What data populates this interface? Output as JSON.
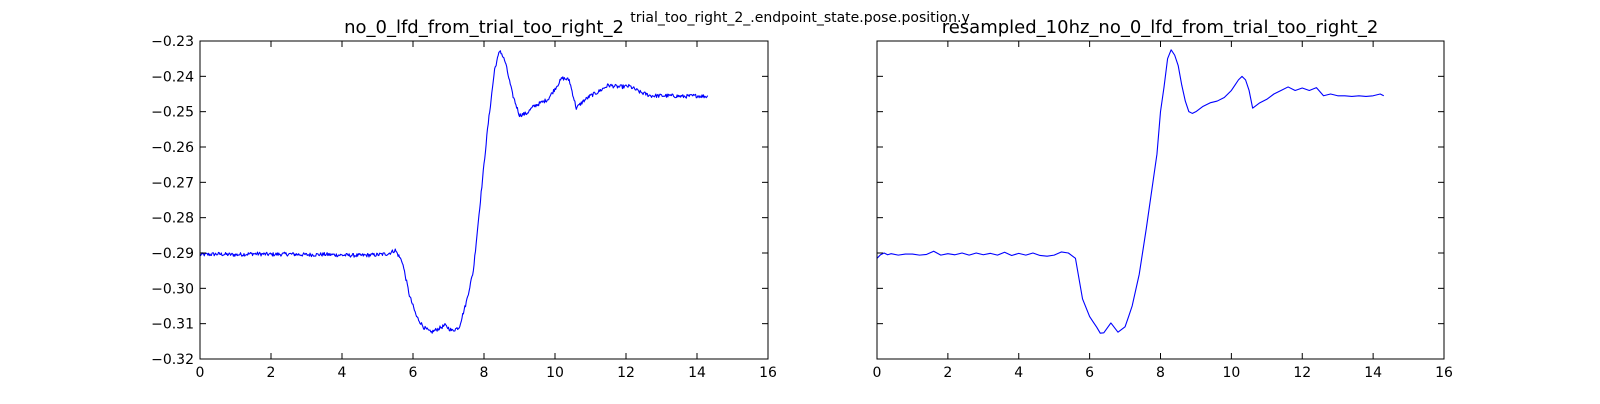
{
  "figure": {
    "suptitle": "trial_too_right_2_.endpoint_state.pose.position.y",
    "line_color": "#0000ff"
  },
  "chart_data": [
    {
      "type": "line",
      "title": "no_0_lfd_from_trial_too_right_2",
      "xlabel": "",
      "ylabel": "",
      "xlim": [
        0,
        16
      ],
      "ylim": [
        -0.32,
        -0.23
      ],
      "xticks": [
        0,
        2,
        4,
        6,
        8,
        10,
        12,
        14,
        16
      ],
      "xtick_labels": [
        "0",
        "2",
        "4",
        "6",
        "8",
        "10",
        "12",
        "14",
        "16"
      ],
      "yticks": [
        -0.32,
        -0.31,
        -0.3,
        -0.29,
        -0.28,
        -0.27,
        -0.26,
        -0.25,
        -0.24,
        -0.23
      ],
      "ytick_labels": [
        "−0.32",
        "−0.31",
        "−0.30",
        "−0.29",
        "−0.28",
        "−0.27",
        "−0.26",
        "−0.25",
        "−0.24",
        "−0.23"
      ],
      "grid": false,
      "legend": "none",
      "noisy": true,
      "series": [
        {
          "x": [
            0.0,
            0.5,
            1.0,
            1.5,
            2.0,
            2.5,
            3.0,
            3.5,
            4.0,
            4.5,
            5.0,
            5.3,
            5.5,
            5.7,
            5.9,
            6.1,
            6.3,
            6.5,
            6.7,
            6.9,
            7.1,
            7.3,
            7.5,
            7.7,
            7.9,
            8.1,
            8.3,
            8.45,
            8.6,
            8.8,
            9.0,
            9.2,
            9.4,
            9.6,
            9.8,
            10.0,
            10.2,
            10.4,
            10.6,
            10.8,
            11.0,
            11.2,
            11.5,
            11.8,
            12.1,
            12.4,
            12.7,
            13.0,
            13.3,
            13.6,
            14.0,
            14.3
          ],
          "y": [
            -0.2905,
            -0.2903,
            -0.2905,
            -0.2902,
            -0.2904,
            -0.2903,
            -0.2905,
            -0.2904,
            -0.2906,
            -0.2907,
            -0.2905,
            -0.2902,
            -0.2892,
            -0.2925,
            -0.302,
            -0.308,
            -0.311,
            -0.3125,
            -0.3115,
            -0.3105,
            -0.312,
            -0.311,
            -0.304,
            -0.295,
            -0.275,
            -0.255,
            -0.238,
            -0.2325,
            -0.236,
            -0.245,
            -0.251,
            -0.2505,
            -0.2485,
            -0.2475,
            -0.2465,
            -0.2435,
            -0.2405,
            -0.241,
            -0.249,
            -0.247,
            -0.2455,
            -0.2445,
            -0.2425,
            -0.243,
            -0.2428,
            -0.2445,
            -0.2455,
            -0.2455,
            -0.2455,
            -0.2457,
            -0.2455,
            -0.2457
          ]
        }
      ]
    },
    {
      "type": "line",
      "title": "resampled_10hz_no_0_lfd_from_trial_too_right_2",
      "xlabel": "",
      "ylabel": "",
      "xlim": [
        0,
        16
      ],
      "ylim": [
        -0.32,
        -0.23
      ],
      "xticks": [
        0,
        2,
        4,
        6,
        8,
        10,
        12,
        14,
        16
      ],
      "xtick_labels": [
        "0",
        "2",
        "4",
        "6",
        "8",
        "10",
        "12",
        "14",
        "16"
      ],
      "yticks": [
        -0.32,
        -0.31,
        -0.3,
        -0.29,
        -0.28,
        -0.27,
        -0.26,
        -0.25,
        -0.24,
        -0.23
      ],
      "ytick_labels": [],
      "grid": false,
      "legend": "none",
      "noisy": false,
      "series": [
        {
          "x": [
            0.0,
            0.1,
            0.2,
            0.3,
            0.4,
            0.6,
            0.8,
            1.0,
            1.2,
            1.4,
            1.6,
            1.8,
            2.0,
            2.2,
            2.4,
            2.6,
            2.8,
            3.0,
            3.2,
            3.4,
            3.6,
            3.8,
            4.0,
            4.2,
            4.4,
            4.6,
            4.8,
            5.0,
            5.2,
            5.4,
            5.6,
            5.8,
            6.0,
            6.1,
            6.2,
            6.3,
            6.4,
            6.6,
            6.8,
            7.0,
            7.1,
            7.2,
            7.4,
            7.6,
            7.8,
            7.9,
            8.0,
            8.1,
            8.2,
            8.3,
            8.4,
            8.5,
            8.6,
            8.7,
            8.8,
            8.9,
            9.0,
            9.2,
            9.4,
            9.6,
            9.8,
            10.0,
            10.1,
            10.2,
            10.3,
            10.4,
            10.5,
            10.6,
            10.8,
            11.0,
            11.2,
            11.4,
            11.6,
            11.8,
            12.0,
            12.2,
            12.4,
            12.6,
            12.8,
            13.0,
            13.2,
            13.4,
            13.6,
            13.8,
            14.0,
            14.2,
            14.3
          ],
          "y": [
            -0.2915,
            -0.2905,
            -0.29,
            -0.2905,
            -0.2902,
            -0.2906,
            -0.2903,
            -0.2903,
            -0.2906,
            -0.2904,
            -0.2895,
            -0.2906,
            -0.2902,
            -0.2905,
            -0.29,
            -0.2906,
            -0.29,
            -0.2905,
            -0.2901,
            -0.2906,
            -0.2898,
            -0.2907,
            -0.2901,
            -0.2906,
            -0.29,
            -0.2907,
            -0.2909,
            -0.2906,
            -0.2897,
            -0.29,
            -0.2915,
            -0.303,
            -0.308,
            -0.3095,
            -0.311,
            -0.3127,
            -0.3126,
            -0.3098,
            -0.3124,
            -0.3109,
            -0.308,
            -0.305,
            -0.296,
            -0.283,
            -0.269,
            -0.262,
            -0.25,
            -0.243,
            -0.235,
            -0.2325,
            -0.234,
            -0.237,
            -0.2425,
            -0.247,
            -0.25,
            -0.2505,
            -0.25,
            -0.2485,
            -0.2475,
            -0.247,
            -0.246,
            -0.244,
            -0.2425,
            -0.241,
            -0.24,
            -0.241,
            -0.244,
            -0.249,
            -0.2475,
            -0.2465,
            -0.245,
            -0.244,
            -0.243,
            -0.244,
            -0.2433,
            -0.244,
            -0.2432,
            -0.2455,
            -0.245,
            -0.2455,
            -0.2455,
            -0.2457,
            -0.2455,
            -0.2457,
            -0.2455,
            -0.245,
            -0.2455
          ]
        }
      ]
    }
  ]
}
